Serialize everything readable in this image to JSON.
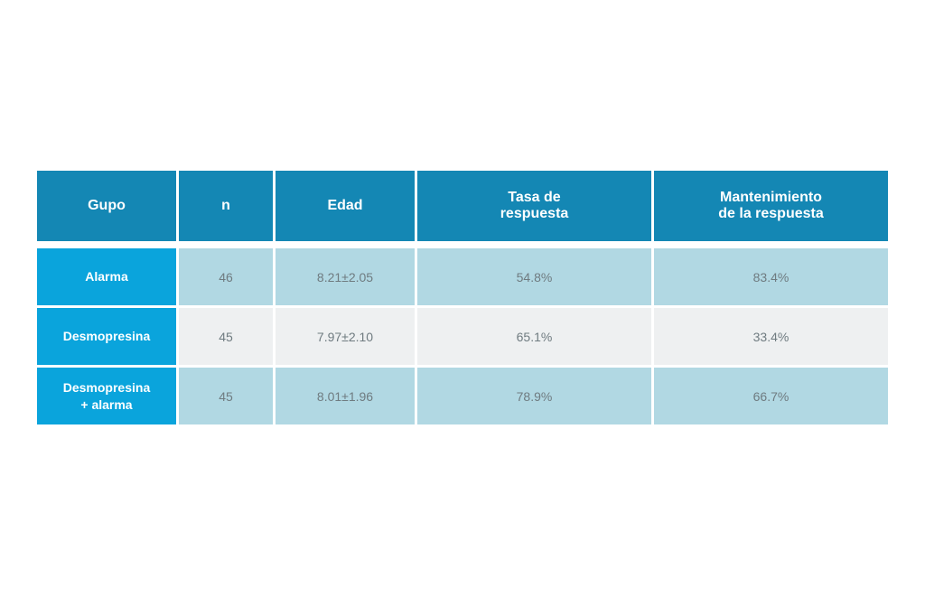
{
  "table": {
    "headers": [
      "Gupo",
      "n",
      "Edad",
      "Tasa de\nrespuesta",
      "Mantenimiento\nde la respuesta"
    ],
    "rows": [
      {
        "group": "Alarma",
        "n": "46",
        "edad": "8.21±2.05",
        "tasa": "54.8%",
        "mantenimiento": "83.4%"
      },
      {
        "group": "Desmopresina",
        "n": "45",
        "edad": "7.97±2.10",
        "tasa": "65.1%",
        "mantenimiento": "33.4%"
      },
      {
        "group": "Desmopresina\n+ alarma",
        "n": "45",
        "edad": "8.01±1.96",
        "tasa": "78.9%",
        "mantenimiento": "66.7%"
      }
    ]
  },
  "colors": {
    "header_bg": "#1487b4",
    "group_bg": "#0aa4dc",
    "row_blue": "#b1d8e3",
    "row_grey": "#eef0f1",
    "value_text": "#6f7b80"
  }
}
